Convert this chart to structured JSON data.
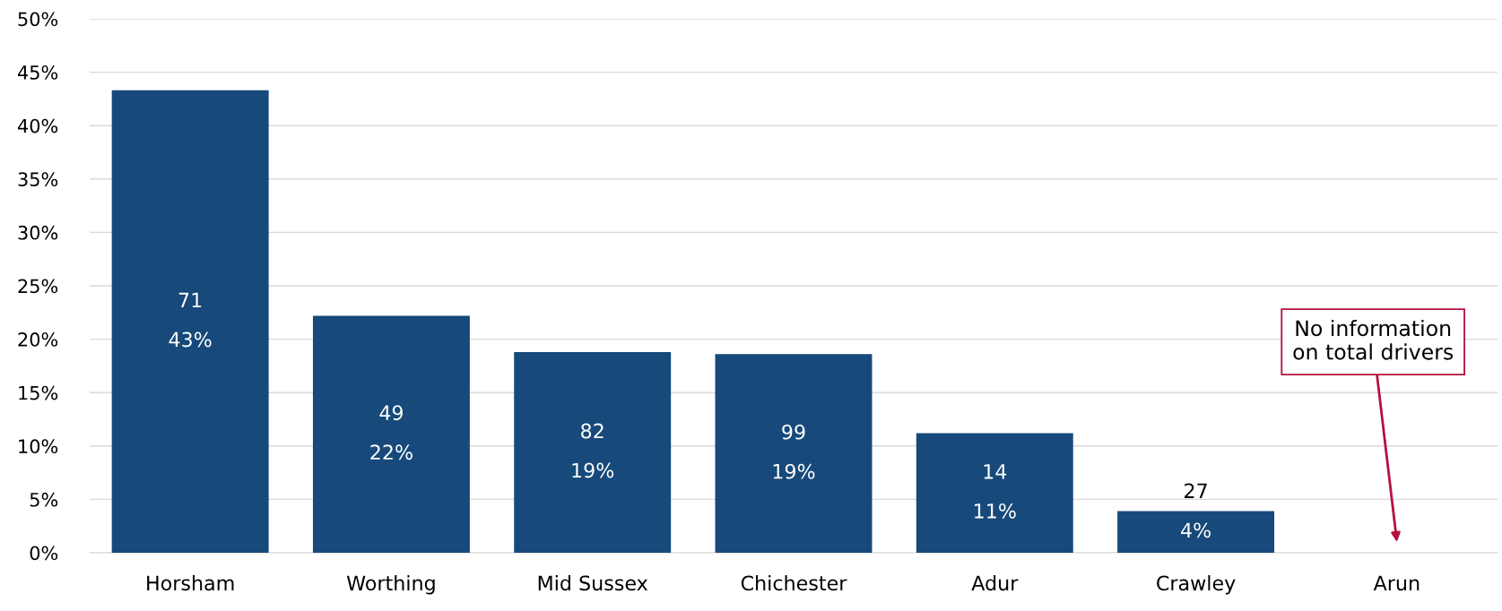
{
  "chart_data": {
    "type": "bar",
    "categories": [
      "Horsham",
      "Worthing",
      "Mid Sussex",
      "Chichester",
      "Adur",
      "Crawley",
      "Arun"
    ],
    "values": [
      43.3,
      22.2,
      18.8,
      18.6,
      11.2,
      3.9,
      null
    ],
    "value_labels": [
      "71\n43%",
      "49\n22%",
      "82\n19%",
      "99\n19%",
      "14\n11%",
      "27\n4%",
      null
    ],
    "color": "#17497a",
    "ylim": [
      0,
      50
    ],
    "yticks": [
      {
        "value": 0,
        "label": "0%"
      },
      {
        "value": 5,
        "label": "5%"
      },
      {
        "value": 10,
        "label": "10%"
      },
      {
        "value": 15,
        "label": "15%"
      },
      {
        "value": 20,
        "label": "20%"
      },
      {
        "value": 25,
        "label": "25%"
      },
      {
        "value": 30,
        "label": "30%"
      },
      {
        "value": 35,
        "label": "35%"
      },
      {
        "value": 40,
        "label": "40%"
      },
      {
        "value": 45,
        "label": "45%"
      },
      {
        "value": 50,
        "label": "50%"
      }
    ],
    "grid": "y",
    "annotations": [
      "No information\non total drivers"
    ]
  }
}
